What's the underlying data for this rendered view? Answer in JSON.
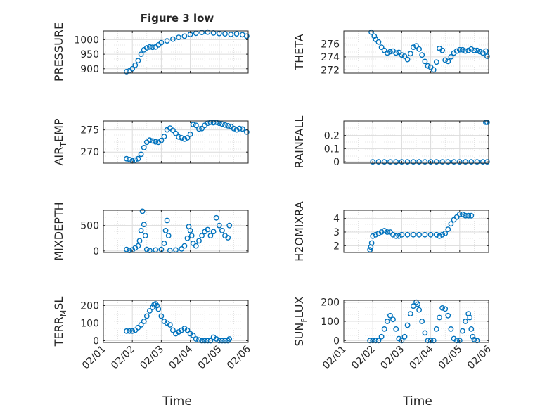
{
  "figure": {
    "title": "Figure 3 low",
    "xlabel": "Time",
    "x_ticks": [
      "02/01",
      "02/02",
      "02/03",
      "02/04",
      "02/05",
      "02/06"
    ],
    "marker_color": "#0072BD"
  },
  "chart_data": [
    {
      "type": "scatter",
      "ylabel": "PRESSURE",
      "title": "Figure 3 low",
      "xlim": [
        0,
        5
      ],
      "ylim": [
        885,
        1030
      ],
      "yticks": [
        900,
        950,
        1000
      ],
      "grid": true,
      "x_unit": "days since 02/01",
      "points": [
        [
          0.8,
          890
        ],
        [
          0.9,
          893
        ],
        [
          1.0,
          900
        ],
        [
          1.1,
          912
        ],
        [
          1.2,
          928
        ],
        [
          1.3,
          950
        ],
        [
          1.4,
          965
        ],
        [
          1.5,
          972
        ],
        [
          1.6,
          975
        ],
        [
          1.7,
          974
        ],
        [
          1.8,
          975
        ],
        [
          1.9,
          982
        ],
        [
          2.0,
          990
        ],
        [
          2.2,
          996
        ],
        [
          2.4,
          1002
        ],
        [
          2.6,
          1008
        ],
        [
          2.8,
          1012
        ],
        [
          3.0,
          1018
        ],
        [
          3.2,
          1022
        ],
        [
          3.4,
          1025
        ],
        [
          3.6,
          1026
        ],
        [
          3.8,
          1023
        ],
        [
          4.0,
          1021
        ],
        [
          4.2,
          1020
        ],
        [
          4.4,
          1018
        ],
        [
          4.6,
          1020
        ],
        [
          4.8,
          1017
        ],
        [
          4.95,
          1012
        ]
      ]
    },
    {
      "type": "scatter",
      "ylabel": "THETA",
      "xlim": [
        0,
        5
      ],
      "ylim": [
        271.5,
        278
      ],
      "yticks": [
        272,
        274,
        276
      ],
      "grid": true,
      "x_unit": "days since 02/01",
      "points": [
        [
          0.95,
          277.8
        ],
        [
          1.05,
          277.2
        ],
        [
          1.1,
          276.7
        ],
        [
          1.2,
          276.3
        ],
        [
          1.3,
          275.5
        ],
        [
          1.4,
          275.0
        ],
        [
          1.5,
          274.6
        ],
        [
          1.6,
          274.8
        ],
        [
          1.7,
          274.9
        ],
        [
          1.8,
          274.6
        ],
        [
          1.9,
          274.7
        ],
        [
          2.0,
          274.3
        ],
        [
          2.1,
          274.1
        ],
        [
          2.2,
          273.6
        ],
        [
          2.3,
          274.5
        ],
        [
          2.4,
          275.5
        ],
        [
          2.5,
          275.7
        ],
        [
          2.6,
          275.2
        ],
        [
          2.7,
          274.3
        ],
        [
          2.8,
          273.3
        ],
        [
          2.9,
          272.6
        ],
        [
          3.0,
          272.4
        ],
        [
          3.1,
          272.0
        ],
        [
          3.2,
          273.2
        ],
        [
          3.3,
          275.3
        ],
        [
          3.4,
          275.0
        ],
        [
          3.5,
          273.5
        ],
        [
          3.6,
          273.3
        ],
        [
          3.7,
          274.0
        ],
        [
          3.8,
          274.6
        ],
        [
          3.9,
          274.9
        ],
        [
          4.0,
          275.1
        ],
        [
          4.1,
          275.1
        ],
        [
          4.2,
          274.9
        ],
        [
          4.3,
          275.0
        ],
        [
          4.4,
          275.2
        ],
        [
          4.5,
          275.0
        ],
        [
          4.6,
          275.0
        ],
        [
          4.7,
          274.8
        ],
        [
          4.8,
          274.6
        ],
        [
          4.9,
          274.9
        ],
        [
          4.95,
          274.1
        ]
      ]
    },
    {
      "type": "scatter",
      "ylabel": "AIR",
      "ylabel_sub": "T",
      "ylabel_tail": "EMP",
      "xlim": [
        0,
        5
      ],
      "ylim": [
        267.5,
        277
      ],
      "yticks": [
        270,
        275
      ],
      "grid": true,
      "x_unit": "days since 02/01",
      "points": [
        [
          0.8,
          268.5
        ],
        [
          0.9,
          268.3
        ],
        [
          1.0,
          268.0
        ],
        [
          1.1,
          268.2
        ],
        [
          1.2,
          268.5
        ],
        [
          1.3,
          269.5
        ],
        [
          1.4,
          271.0
        ],
        [
          1.5,
          272.2
        ],
        [
          1.6,
          272.7
        ],
        [
          1.7,
          272.5
        ],
        [
          1.8,
          272.3
        ],
        [
          1.9,
          272.2
        ],
        [
          2.0,
          272.6
        ],
        [
          2.1,
          273.5
        ],
        [
          2.2,
          275.0
        ],
        [
          2.3,
          275.4
        ],
        [
          2.4,
          274.9
        ],
        [
          2.5,
          274.2
        ],
        [
          2.6,
          273.4
        ],
        [
          2.7,
          273.2
        ],
        [
          2.8,
          272.9
        ],
        [
          2.9,
          273.2
        ],
        [
          3.0,
          274.0
        ],
        [
          3.1,
          276.2
        ],
        [
          3.2,
          276.0
        ],
        [
          3.3,
          275.2
        ],
        [
          3.4,
          275.3
        ],
        [
          3.5,
          276.0
        ],
        [
          3.6,
          276.5
        ],
        [
          3.7,
          276.7
        ],
        [
          3.8,
          276.6
        ],
        [
          3.9,
          276.7
        ],
        [
          4.0,
          276.5
        ],
        [
          4.1,
          276.3
        ],
        [
          4.2,
          276.1
        ],
        [
          4.3,
          275.9
        ],
        [
          4.4,
          275.8
        ],
        [
          4.5,
          275.3
        ],
        [
          4.6,
          275.0
        ],
        [
          4.7,
          275.3
        ],
        [
          4.8,
          275.2
        ],
        [
          4.95,
          274.5
        ]
      ]
    },
    {
      "type": "scatter",
      "ylabel": "RAINFALL",
      "xlim": [
        0,
        5
      ],
      "ylim": [
        -0.01,
        0.31
      ],
      "yticks": [
        0,
        0.1,
        0.2
      ],
      "grid": true,
      "x_unit": "days since 02/01",
      "points": [
        [
          1.0,
          0
        ],
        [
          1.2,
          0
        ],
        [
          1.4,
          0
        ],
        [
          1.6,
          0
        ],
        [
          1.8,
          0
        ],
        [
          2.0,
          0
        ],
        [
          2.2,
          0
        ],
        [
          2.4,
          0
        ],
        [
          2.6,
          0
        ],
        [
          2.8,
          0
        ],
        [
          3.0,
          0
        ],
        [
          3.2,
          0
        ],
        [
          3.4,
          0
        ],
        [
          3.6,
          0
        ],
        [
          3.8,
          0
        ],
        [
          4.0,
          0
        ],
        [
          4.2,
          0
        ],
        [
          4.4,
          0
        ],
        [
          4.6,
          0
        ],
        [
          4.8,
          0
        ],
        [
          4.95,
          0
        ],
        [
          4.95,
          0.3
        ],
        [
          4.9,
          0.3
        ]
      ]
    },
    {
      "type": "scatter",
      "ylabel": "MIXDEPTH",
      "xlim": [
        0,
        5
      ],
      "ylim": [
        -30,
        800
      ],
      "yticks": [
        0,
        500
      ],
      "grid": true,
      "x_unit": "days since 02/01",
      "points": [
        [
          0.8,
          30
        ],
        [
          0.9,
          10
        ],
        [
          1.0,
          20
        ],
        [
          1.1,
          60
        ],
        [
          1.2,
          100
        ],
        [
          1.25,
          200
        ],
        [
          1.3,
          400
        ],
        [
          1.35,
          780
        ],
        [
          1.4,
          520
        ],
        [
          1.45,
          300
        ],
        [
          1.5,
          30
        ],
        [
          1.6,
          10
        ],
        [
          1.8,
          20
        ],
        [
          2.0,
          30
        ],
        [
          2.1,
          150
        ],
        [
          2.15,
          400
        ],
        [
          2.2,
          600
        ],
        [
          2.25,
          300
        ],
        [
          2.3,
          10
        ],
        [
          2.5,
          20
        ],
        [
          2.7,
          40
        ],
        [
          2.8,
          100
        ],
        [
          2.9,
          250
        ],
        [
          2.95,
          480
        ],
        [
          3.0,
          400
        ],
        [
          3.05,
          300
        ],
        [
          3.1,
          150
        ],
        [
          3.2,
          100
        ],
        [
          3.3,
          200
        ],
        [
          3.4,
          300
        ],
        [
          3.5,
          380
        ],
        [
          3.6,
          420
        ],
        [
          3.7,
          300
        ],
        [
          3.8,
          380
        ],
        [
          3.9,
          650
        ],
        [
          4.0,
          500
        ],
        [
          4.1,
          400
        ],
        [
          4.2,
          300
        ],
        [
          4.3,
          260
        ],
        [
          4.35,
          500
        ]
      ]
    },
    {
      "type": "scatter",
      "ylabel": "H2OMIXRA",
      "xlim": [
        0,
        5
      ],
      "ylim": [
        1.5,
        4.6
      ],
      "yticks": [
        2,
        3,
        4
      ],
      "grid": true,
      "x_unit": "days since 02/01",
      "points": [
        [
          0.9,
          1.7
        ],
        [
          0.93,
          1.9
        ],
        [
          0.96,
          2.2
        ],
        [
          1.0,
          2.7
        ],
        [
          1.1,
          2.8
        ],
        [
          1.2,
          2.9
        ],
        [
          1.3,
          3.0
        ],
        [
          1.4,
          3.1
        ],
        [
          1.5,
          3.0
        ],
        [
          1.6,
          3.0
        ],
        [
          1.7,
          2.8
        ],
        [
          1.8,
          2.7
        ],
        [
          1.9,
          2.7
        ],
        [
          2.0,
          2.8
        ],
        [
          2.2,
          2.8
        ],
        [
          2.4,
          2.8
        ],
        [
          2.6,
          2.8
        ],
        [
          2.8,
          2.8
        ],
        [
          3.0,
          2.8
        ],
        [
          3.2,
          2.8
        ],
        [
          3.3,
          2.7
        ],
        [
          3.4,
          2.8
        ],
        [
          3.5,
          2.9
        ],
        [
          3.6,
          3.2
        ],
        [
          3.7,
          3.6
        ],
        [
          3.8,
          3.9
        ],
        [
          3.9,
          4.1
        ],
        [
          4.0,
          4.3
        ],
        [
          4.1,
          4.3
        ],
        [
          4.2,
          4.2
        ],
        [
          4.3,
          4.2
        ],
        [
          4.4,
          4.2
        ]
      ]
    },
    {
      "type": "scatter",
      "ylabel": "TERR",
      "ylabel_sub": "M",
      "ylabel_tail": "SL",
      "xlim": [
        0,
        5
      ],
      "ylim": [
        -10,
        230
      ],
      "yticks": [
        0,
        100,
        200
      ],
      "grid": true,
      "x_unit": "days since 02/01",
      "points": [
        [
          0.8,
          55
        ],
        [
          0.9,
          55
        ],
        [
          1.0,
          55
        ],
        [
          1.1,
          60
        ],
        [
          1.2,
          75
        ],
        [
          1.3,
          90
        ],
        [
          1.4,
          110
        ],
        [
          1.5,
          140
        ],
        [
          1.6,
          170
        ],
        [
          1.7,
          190
        ],
        [
          1.75,
          205
        ],
        [
          1.8,
          210
        ],
        [
          1.85,
          200
        ],
        [
          1.9,
          180
        ],
        [
          2.0,
          140
        ],
        [
          2.1,
          110
        ],
        [
          2.2,
          100
        ],
        [
          2.3,
          90
        ],
        [
          2.4,
          60
        ],
        [
          2.5,
          40
        ],
        [
          2.6,
          50
        ],
        [
          2.7,
          60
        ],
        [
          2.8,
          70
        ],
        [
          2.9,
          60
        ],
        [
          3.0,
          40
        ],
        [
          3.1,
          30
        ],
        [
          3.2,
          10
        ],
        [
          3.3,
          5
        ],
        [
          3.4,
          0
        ],
        [
          3.5,
          0
        ],
        [
          3.6,
          0
        ],
        [
          3.7,
          0
        ],
        [
          3.8,
          20
        ],
        [
          3.9,
          10
        ],
        [
          4.0,
          0
        ],
        [
          4.1,
          0
        ],
        [
          4.2,
          0
        ],
        [
          4.3,
          0
        ],
        [
          4.35,
          10
        ]
      ]
    },
    {
      "type": "scatter",
      "ylabel": "SUN",
      "ylabel_sub": "F",
      "ylabel_tail": "LUX",
      "xlim": [
        0,
        5
      ],
      "ylim": [
        -10,
        210
      ],
      "yticks": [
        0,
        100,
        200
      ],
      "grid": true,
      "x_unit": "days since 02/01",
      "points": [
        [
          0.9,
          0
        ],
        [
          1.0,
          0
        ],
        [
          1.1,
          0
        ],
        [
          1.2,
          0
        ],
        [
          1.3,
          20
        ],
        [
          1.4,
          60
        ],
        [
          1.5,
          100
        ],
        [
          1.6,
          130
        ],
        [
          1.7,
          110
        ],
        [
          1.8,
          60
        ],
        [
          1.9,
          10
        ],
        [
          2.0,
          0
        ],
        [
          2.1,
          20
        ],
        [
          2.2,
          80
        ],
        [
          2.3,
          140
        ],
        [
          2.4,
          180
        ],
        [
          2.5,
          200
        ],
        [
          2.55,
          190
        ],
        [
          2.6,
          160
        ],
        [
          2.7,
          100
        ],
        [
          2.8,
          40
        ],
        [
          2.9,
          0
        ],
        [
          3.0,
          0
        ],
        [
          3.1,
          0
        ],
        [
          3.2,
          60
        ],
        [
          3.3,
          120
        ],
        [
          3.4,
          170
        ],
        [
          3.5,
          165
        ],
        [
          3.6,
          130
        ],
        [
          3.7,
          60
        ],
        [
          3.8,
          10
        ],
        [
          3.9,
          0
        ],
        [
          4.0,
          0
        ],
        [
          4.1,
          50
        ],
        [
          4.2,
          100
        ],
        [
          4.3,
          140
        ],
        [
          4.35,
          120
        ],
        [
          4.4,
          60
        ],
        [
          4.45,
          20
        ],
        [
          4.5,
          5
        ],
        [
          4.6,
          0
        ]
      ]
    }
  ]
}
